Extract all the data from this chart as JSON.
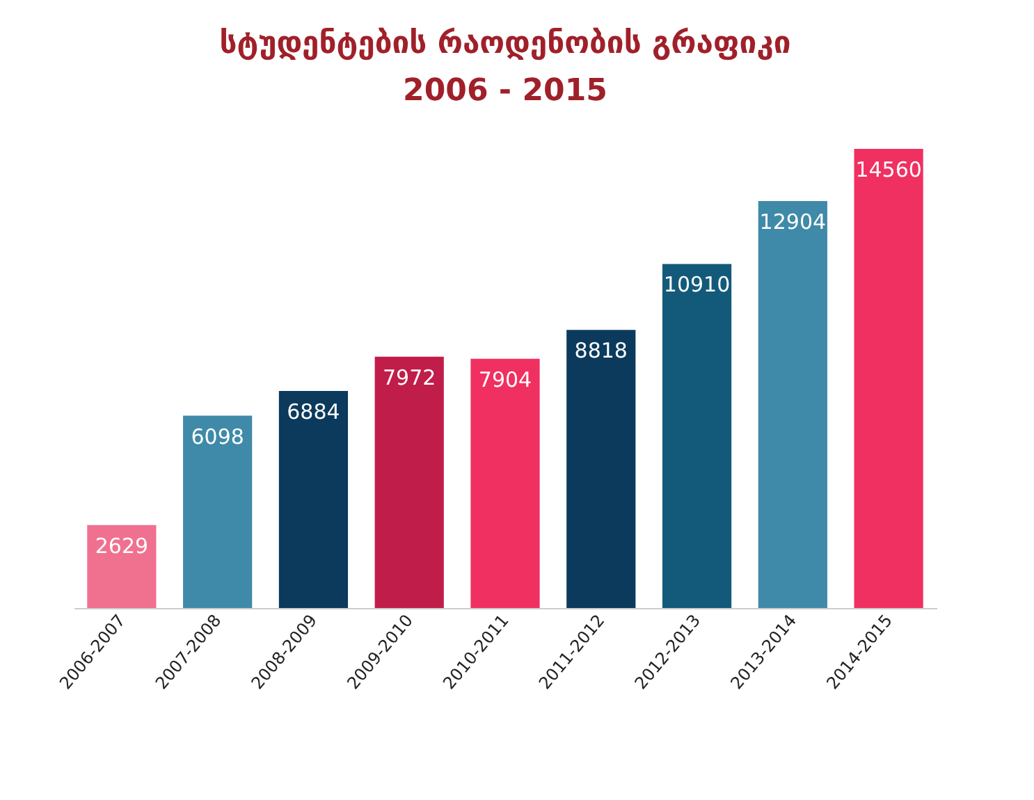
{
  "chart_data": {
    "type": "bar",
    "title": "სტუდენტების რაოდენობის გრაფიკი",
    "subtitle": "2006 - 2015",
    "categories": [
      "2006-2007",
      "2007-2008",
      "2008-2009",
      "2009-2010",
      "2010-2011",
      "2011-2012",
      "2012-2013",
      "2013-2014",
      "2014-2015"
    ],
    "values": [
      2629,
      6098,
      6884,
      7972,
      7904,
      8818,
      10910,
      12904,
      14560
    ],
    "colors": [
      "#f07090",
      "#3f8aa8",
      "#0b3a5c",
      "#c01d4a",
      "#f03060",
      "#0b3a5c",
      "#135a7a",
      "#3f8aa8",
      "#f03060"
    ],
    "data_labels": true
  }
}
